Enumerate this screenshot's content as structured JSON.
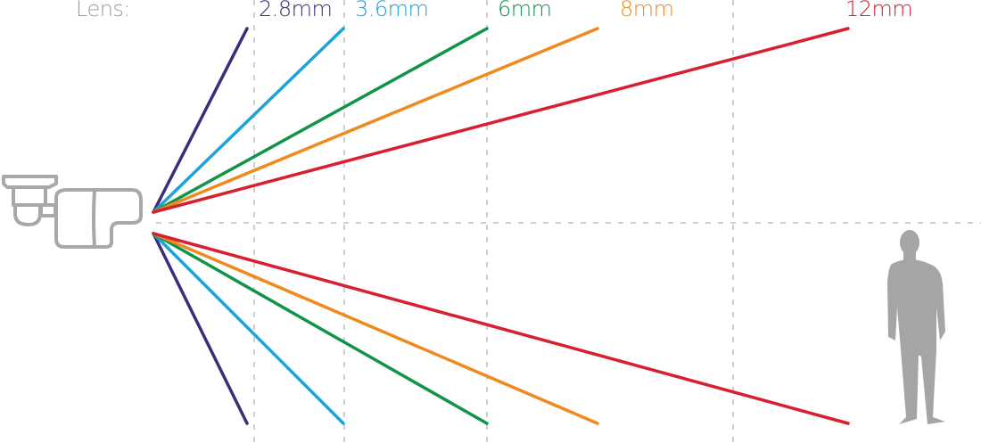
{
  "legend_label": "Lens:",
  "lenses": [
    {
      "label": "2.8mm",
      "color": "#3b2d7c"
    },
    {
      "label": "3.6mm",
      "color": "#1ea2dc"
    },
    {
      "label": "6mm",
      "color": "#11944a"
    },
    {
      "label": "8mm",
      "color": "#ee8a1f"
    },
    {
      "label": "12mm",
      "color": "#d7202f"
    }
  ],
  "icons": {
    "camera": "bullet-camera-icon",
    "person": "person-silhouette-icon"
  },
  "colors": {
    "grid": "#cccccc",
    "icon": "#a8a8a8",
    "label_gray": "#9a9a9a"
  }
}
